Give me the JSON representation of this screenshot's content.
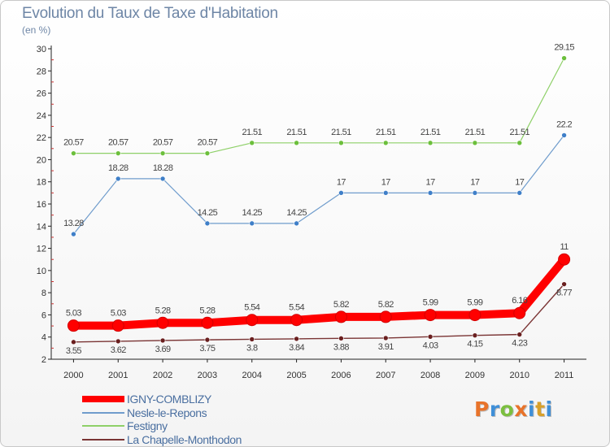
{
  "title": "Evolution du Taux de Taxe d'Habitation",
  "unit": "(en %)",
  "logo": {
    "text": "Proxiti",
    "colors": [
      "#e8732a",
      "#3f8fd8",
      "#7bbf3f",
      "#e8732a",
      "#3f8fd8",
      "#d8a02a",
      "#3f8fd8"
    ]
  },
  "chart_data": {
    "type": "line",
    "title": "Evolution du Taux de Taxe d'Habitation",
    "ylabel": "(en %)",
    "xlabel": "",
    "ylim": [
      2,
      30
    ],
    "yticks": [
      2,
      4,
      6,
      8,
      10,
      12,
      14,
      16,
      18,
      20,
      22,
      24,
      26,
      28,
      30
    ],
    "categories": [
      "2000",
      "2001",
      "2002",
      "2003",
      "2004",
      "2005",
      "2006",
      "2007",
      "2008",
      "2009",
      "2010",
      "2011"
    ],
    "series": [
      {
        "name": "IGNY-COMBLIZY",
        "color": "#ff0000",
        "marker": "#ff0000",
        "values": [
          5.03,
          5.03,
          5.28,
          5.28,
          5.54,
          5.54,
          5.82,
          5.82,
          5.99,
          5.99,
          6.16,
          11
        ],
        "labels": [
          "5.03",
          "5.03",
          "5.28",
          "5.28",
          "5.54",
          "5.54",
          "5.82",
          "5.82",
          "5.99",
          "5.99",
          "6.16",
          "11"
        ]
      },
      {
        "name": "Nesle-le-Repons",
        "color": "#6f9ccc",
        "marker": "#3f7fc8",
        "values": [
          13.28,
          18.28,
          18.28,
          14.25,
          14.25,
          14.25,
          17,
          17,
          17,
          17,
          17,
          22.2
        ],
        "labels": [
          "13.28",
          "18.28",
          "18.28",
          "14.25",
          "14.25",
          "14.25",
          "17",
          "17",
          "17",
          "17",
          "17",
          "22.2"
        ]
      },
      {
        "name": "Festigny",
        "color": "#8ed068",
        "marker": "#6cbf3c",
        "values": [
          20.57,
          20.57,
          20.57,
          20.57,
          21.51,
          21.51,
          21.51,
          21.51,
          21.51,
          21.51,
          21.51,
          29.15
        ],
        "labels": [
          "20.57",
          "20.57",
          "20.57",
          "20.57",
          "21.51",
          "21.51",
          "21.51",
          "21.51",
          "21.51",
          "21.51",
          "21.51",
          "29.15"
        ]
      },
      {
        "name": "La Chapelle-Monthodon",
        "color": "#7a3434",
        "marker": "#6a1f1f",
        "values": [
          3.55,
          3.62,
          3.69,
          3.75,
          3.8,
          3.84,
          3.88,
          3.91,
          4.03,
          4.15,
          4.23,
          8.77
        ],
        "labels": [
          "3.55",
          "3.62",
          "3.69",
          "3.75",
          "3.8",
          "3.84",
          "3.88",
          "3.91",
          "4.03",
          "4.15",
          "4.23",
          "8.77"
        ]
      }
    ],
    "legend": "bottom-left"
  }
}
